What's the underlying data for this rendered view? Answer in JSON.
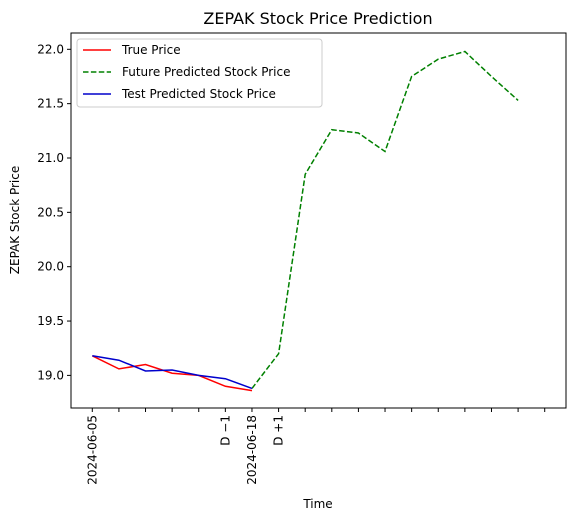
{
  "chart_data": {
    "type": "line",
    "title": "ZEPAK Stock Price Prediction",
    "xlabel": "Time",
    "ylabel": "ZEPAK Stock Price",
    "ylim": [
      18.7,
      22.15
    ],
    "x_tick_labels": [
      {
        "index": 0,
        "label": "2024-06-05"
      },
      {
        "index": 5,
        "label": "D −1"
      },
      {
        "index": 6,
        "label": "2024-06-18"
      },
      {
        "index": 7,
        "label": "D +1"
      }
    ],
    "yticks": [
      "19.0",
      "19.5",
      "20.0",
      "20.5",
      "21.0",
      "21.5",
      "22.0"
    ],
    "legend_position": "top-left",
    "series": [
      {
        "name": "True Price",
        "color": "#ff0000",
        "style": "solid",
        "x": [
          0,
          1,
          2,
          3,
          4,
          5,
          6
        ],
        "values": [
          19.18,
          19.06,
          19.1,
          19.02,
          19.0,
          18.9,
          18.86
        ]
      },
      {
        "name": "Future Predicted Stock Price",
        "color": "#008000",
        "style": "dashed",
        "x": [
          6,
          7,
          8,
          9,
          10,
          11,
          12,
          13,
          14,
          15,
          16
        ],
        "values": [
          18.88,
          19.2,
          20.85,
          21.26,
          21.23,
          21.06,
          21.75,
          21.91,
          21.98,
          21.75,
          21.53
        ]
      },
      {
        "name": "Test Predicted Stock Price",
        "color": "#0000cc",
        "style": "solid",
        "x": [
          0,
          1,
          2,
          3,
          4,
          5,
          6
        ],
        "values": [
          19.18,
          19.14,
          19.04,
          19.05,
          19.0,
          18.97,
          18.88
        ]
      }
    ]
  }
}
